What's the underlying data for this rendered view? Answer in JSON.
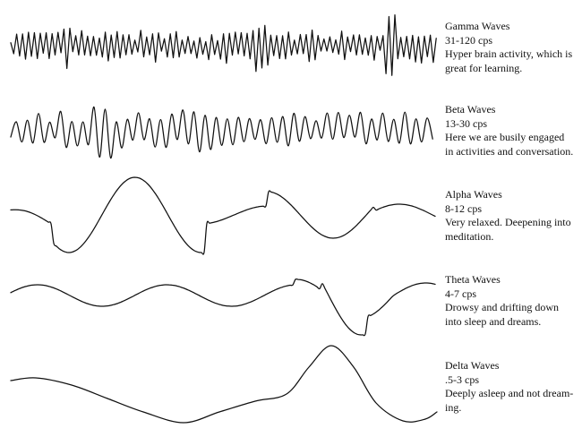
{
  "waves": [
    {
      "id": "gamma",
      "title": "Gamma Waves",
      "freq": "31-120 cps",
      "desc_lines": [
        "Hyper brain activity, which is",
        "great for learning."
      ]
    },
    {
      "id": "beta",
      "title": "Beta Waves",
      "freq": "13-30 cps",
      "desc_lines": [
        "Here we are busily engaged",
        "in activities and conversation."
      ]
    },
    {
      "id": "alpha",
      "title": "Alpha Waves",
      "freq": "8-12 cps",
      "desc_lines": [
        "Very relaxed. Deepening into",
        "meditation."
      ]
    },
    {
      "id": "theta",
      "title": "Theta Waves",
      "freq": "4-7 cps",
      "desc_lines": [
        "Drowsy and drifting down",
        "into sleep and dreams."
      ]
    },
    {
      "id": "delta",
      "title": "Delta Waves",
      "freq": ".5-3 cps",
      "desc_lines": [
        "Deeply asleep and not dream-",
        "ing."
      ]
    }
  ],
  "colors": {
    "ink": "#111111",
    "background": "#ffffff"
  }
}
